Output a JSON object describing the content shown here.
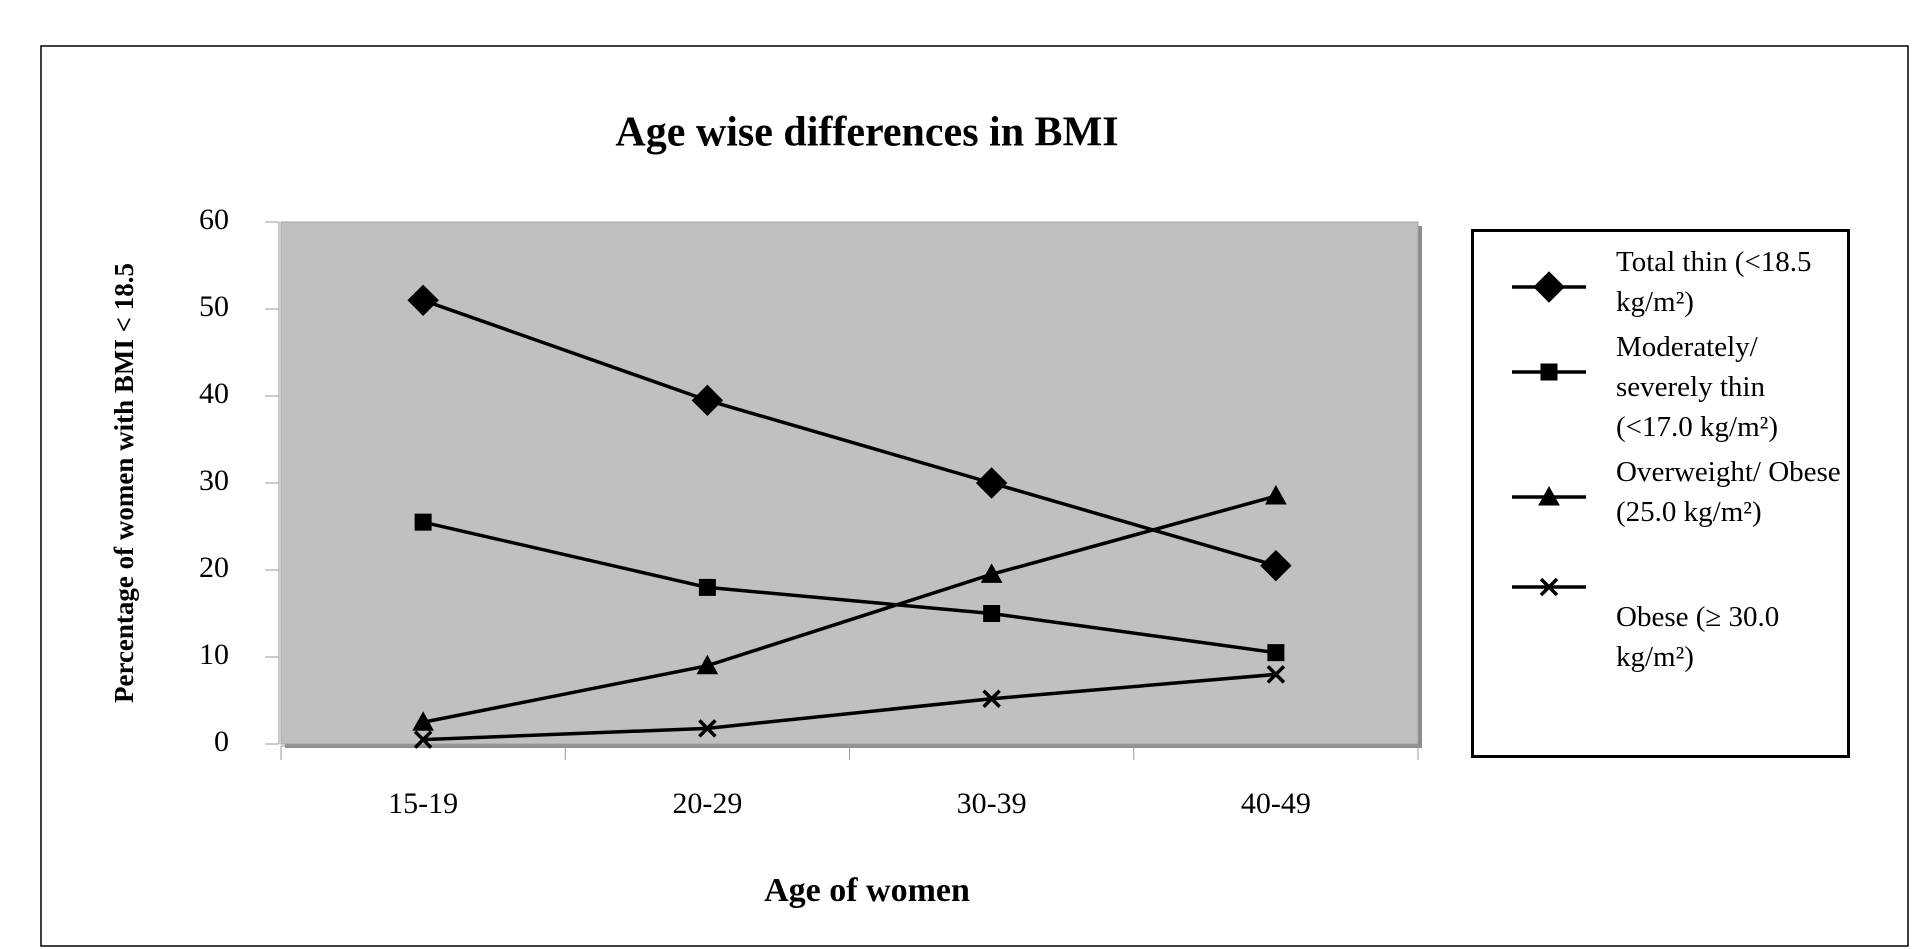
{
  "chart_data": {
    "type": "line",
    "title": "Age wise differences in BMI",
    "xlabel": "Age of women",
    "ylabel": "Percentage of women with BMI < 18.5",
    "categories": [
      "15-19",
      "20-29",
      "30-39",
      "40-49"
    ],
    "series": [
      {
        "name": "Total thin (<18.5 kg/m²)",
        "color": "#000000",
        "marker": "diamond",
        "values": [
          51,
          39.5,
          30,
          20.5
        ]
      },
      {
        "name": "Moderately/ severely thin (<17.0 kg/m²)",
        "color": "#000000",
        "marker": "square",
        "values": [
          25.5,
          18,
          15,
          10.5
        ]
      },
      {
        "name": "Overweight/ Obese (25.0 kg/m²)",
        "color": "#000000",
        "marker": "triangle",
        "values": [
          2.5,
          9,
          19.5,
          28.5
        ]
      },
      {
        "name": "Obese (≥ 30.0 kg/m²)",
        "color": "#000000",
        "marker": "x",
        "values": [
          0.5,
          1.8,
          5.2,
          8
        ]
      }
    ],
    "ylim": [
      0,
      60
    ],
    "yticks": [
      0,
      10,
      20,
      30,
      40,
      50,
      60
    ],
    "grid": false,
    "plot_background": "#c0c0c0",
    "legend": "right"
  }
}
